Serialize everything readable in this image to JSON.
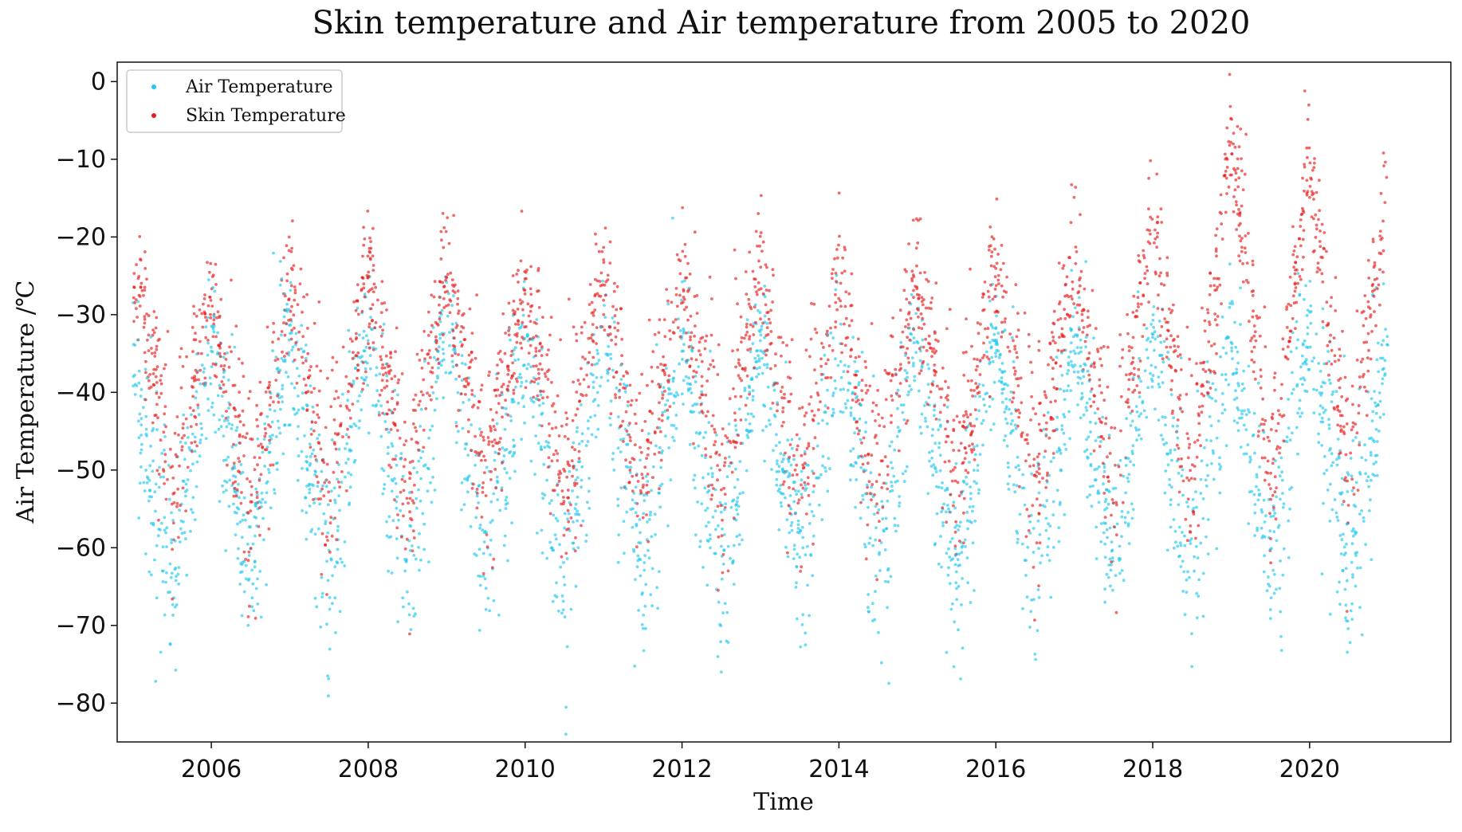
{
  "chart_data": {
    "type": "scatter",
    "title": "Skin temperature and Air temperature from 2005 to 2020",
    "xlabel": "Time",
    "ylabel": "Air Temperature /℃",
    "xlim": [
      2004.8,
      2021.8
    ],
    "ylim": [
      -85,
      2.5
    ],
    "x_ticks": [
      2006,
      2008,
      2010,
      2012,
      2014,
      2016,
      2018,
      2020
    ],
    "x_tick_labels": [
      "2006",
      "2008",
      "2010",
      "2012",
      "2014",
      "2016",
      "2018",
      "2020"
    ],
    "y_ticks": [
      0,
      -10,
      -20,
      -30,
      -40,
      -50,
      -60,
      -70,
      -80
    ],
    "y_tick_labels": [
      "0",
      "−10",
      "−20",
      "−30",
      "−40",
      "−50",
      "−60",
      "−70",
      "−80"
    ],
    "grid": false,
    "legend_position": "top-left",
    "series": [
      {
        "name": "Air Temperature",
        "color": "#1ec8f0",
        "summary_points": {
          "x": [
            2005.0,
            2005.1,
            2005.5,
            2006.0,
            2006.5,
            2007.0,
            2007.5,
            2008.0,
            2008.5,
            2009.0,
            2009.5,
            2010.0,
            2010.5,
            2011.0,
            2011.5,
            2012.0,
            2012.5,
            2013.0,
            2013.5,
            2014.0,
            2014.5,
            2015.0,
            2015.5,
            2016.0,
            2016.5,
            2017.0,
            2017.5,
            2018.0,
            2018.5,
            2019.0,
            2019.5,
            2020.0,
            2020.5,
            2021.0
          ],
          "y": [
            -33,
            -45,
            -63,
            -35,
            -63,
            -33,
            -63,
            -33,
            -63,
            -30,
            -63,
            -33,
            -63,
            -33,
            -63,
            -33,
            -63,
            -33,
            -63,
            -33,
            -63,
            -33,
            -63,
            -33,
            -63,
            -33,
            -63,
            -33,
            -63,
            -32,
            -63,
            -33,
            -63,
            -33
          ]
        }
      },
      {
        "name": "Skin Temperature",
        "color": "#e81b1b",
        "summary_points": {
          "x": [
            2005.0,
            2005.1,
            2005.5,
            2006.0,
            2006.5,
            2007.0,
            2007.5,
            2008.0,
            2008.5,
            2009.0,
            2009.5,
            2010.0,
            2010.5,
            2011.0,
            2011.5,
            2012.0,
            2012.5,
            2013.0,
            2013.5,
            2014.0,
            2014.5,
            2015.0,
            2015.5,
            2016.0,
            2016.5,
            2017.0,
            2017.5,
            2018.0,
            2018.5,
            2019.0,
            2019.5,
            2020.0,
            2020.5,
            2021.0
          ],
          "y": [
            -28,
            -25,
            -52,
            -27,
            -53,
            -26,
            -53,
            -25,
            -53,
            -24,
            -52,
            -26,
            -52,
            -24,
            -52,
            -25,
            -52,
            -24,
            -52,
            -25,
            -52,
            -25,
            -52,
            -23,
            -52,
            -22,
            -52,
            -18,
            -52,
            -8,
            -51,
            -9,
            -51,
            -12
          ]
        }
      }
    ],
    "legend": [
      {
        "label": "Air Temperature",
        "color": "#1ec8f0"
      },
      {
        "label": "Skin Temperature",
        "color": "#e81b1b"
      }
    ]
  }
}
